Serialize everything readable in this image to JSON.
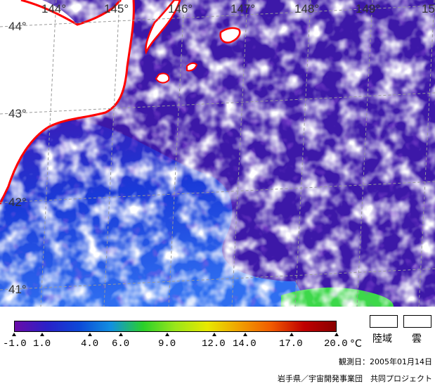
{
  "map": {
    "longitude_labels": [
      "144°",
      "145°",
      "146°",
      "147°",
      "148°",
      "149°",
      "15"
    ],
    "latitude_labels": [
      "44°",
      "43°",
      "42°",
      "41°"
    ],
    "colors": {
      "coastline": "#ff0000",
      "land": "#ffffff",
      "cloud": "#ffffff",
      "grid": "#9a9a9a",
      "sea_cold": "#5a1fb0",
      "sea_mid": "#1a3ad8",
      "sea_warm": "#2f6ef0",
      "sea_warmest": "#3dd84a"
    }
  },
  "legend": {
    "scale_labels": [
      "-1.0",
      "1.0",
      "4.0",
      "6.0",
      "9.0",
      "12.0",
      "14.0",
      "17.0",
      "20.0"
    ],
    "unit": "°C",
    "gradient_stops": [
      "#6a0ca8",
      "#2a20c8",
      "#0d48d8",
      "#1190e0",
      "#2ad02a",
      "#9ae61a",
      "#e8e800",
      "#f0a000",
      "#f05a00",
      "#c00000",
      "#8a0000"
    ],
    "land_label": "陸域",
    "cloud_label": "雲",
    "observation_date": "観測日：2005年01月14日",
    "credit": "岩手県／宇宙開発事業団　共同プロジェクト"
  }
}
